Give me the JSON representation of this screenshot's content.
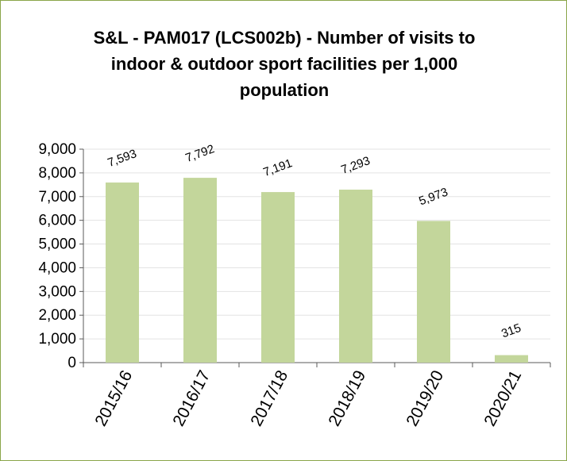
{
  "chart_data": {
    "type": "bar",
    "title": "S&L - PAM017 (LCS002b) - Number of visits to indoor & outdoor sport facilities per 1,000 population",
    "categories": [
      "2015/16",
      "2016/17",
      "2017/18",
      "2018/19",
      "2019/20",
      "2020/21"
    ],
    "values": [
      7593,
      7792,
      7191,
      7293,
      5973,
      315
    ],
    "value_labels": [
      "7,593",
      "7,792",
      "7,191",
      "7,293",
      "5,973",
      "315"
    ],
    "color": "#c3d69b",
    "ylim": [
      0,
      9000
    ],
    "yticks": [
      0,
      {
        "value": 1000,
        "label": "1,000"
      },
      {
        "value": 2000,
        "label": "2,000"
      },
      {
        "value": 3000,
        "label": "3,000"
      },
      {
        "value": 4000,
        "label": "4,000"
      },
      {
        "value": 5000,
        "label": "5,000"
      },
      {
        "value": 6000,
        "label": "6,000"
      },
      {
        "value": 7000,
        "label": "7,000"
      },
      {
        "value": 8000,
        "label": "8,000"
      },
      {
        "value": 9000,
        "label": "9,000"
      }
    ],
    "grid": true
  }
}
